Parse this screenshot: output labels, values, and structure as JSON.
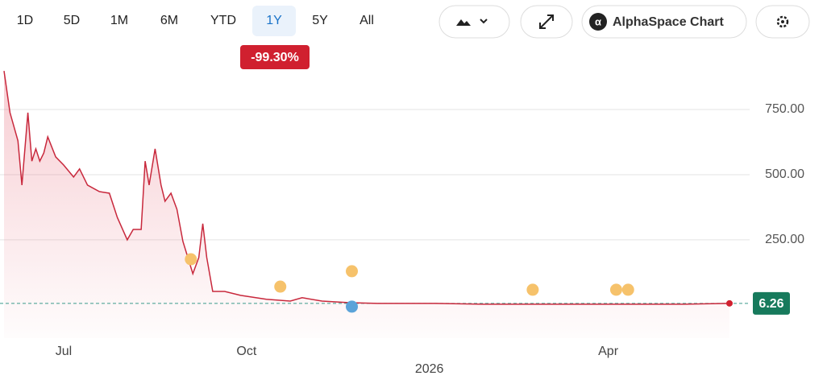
{
  "toolbar": {
    "ranges": [
      "1D",
      "5D",
      "1M",
      "6M",
      "YTD",
      "1Y",
      "5Y",
      "All"
    ],
    "active_range": 5,
    "change": "-99.30%",
    "brand": "AlphaSpace Chart"
  },
  "chart_data": {
    "type": "line",
    "color": "#c8283c",
    "x": [
      0,
      3,
      7,
      9,
      12,
      14,
      16,
      18,
      20,
      22,
      26,
      30,
      35,
      38,
      42,
      48,
      53,
      57,
      62,
      65,
      69,
      71,
      73,
      76,
      79,
      81,
      84,
      87,
      90,
      95,
      98,
      100,
      102,
      105,
      111,
      119,
      132,
      144,
      150,
      160,
      174,
      188,
      217,
      241,
      261,
      281,
      306,
      342,
      365
    ],
    "values": [
      898,
      738,
      630,
      460,
      738,
      552,
      599,
      552,
      583,
      645,
      568,
      537,
      491,
      522,
      460,
      435,
      429,
      336,
      250,
      290,
      290,
      552,
      460,
      599,
      460,
      398,
      429,
      367,
      244,
      120,
      182,
      312,
      182,
      52,
      52,
      37,
      22,
      15,
      28,
      15,
      9,
      6,
      6,
      3,
      3,
      3,
      3,
      3,
      6.26
    ],
    "last_value": 6.26,
    "xlim": [
      0,
      365
    ],
    "xticks": [
      {
        "value": 30,
        "label": "Jul"
      },
      {
        "value": 122,
        "label": "Oct"
      },
      {
        "value": 304,
        "label": "Apr"
      }
    ],
    "year_ticks": [
      {
        "value": 214,
        "label": "2026"
      }
    ],
    "ylim": [
      -127,
      923
    ],
    "yticks": [
      {
        "value": 250,
        "label": "250.00"
      },
      {
        "value": 500,
        "label": "500.00"
      },
      {
        "value": 750,
        "label": "750.00"
      }
    ],
    "grid": true,
    "events": [
      {
        "x": 94,
        "color": "#f6c26b"
      },
      {
        "x": 139,
        "color": "#f6c26b"
      },
      {
        "x": 175,
        "color": "#f6c26b"
      },
      {
        "x": 175,
        "color": "#5ba3d9"
      },
      {
        "x": 266,
        "color": "#f6c26b"
      },
      {
        "x": 308,
        "color": "#f6c26b"
      },
      {
        "x": 314,
        "color": "#f6c26b"
      }
    ]
  }
}
